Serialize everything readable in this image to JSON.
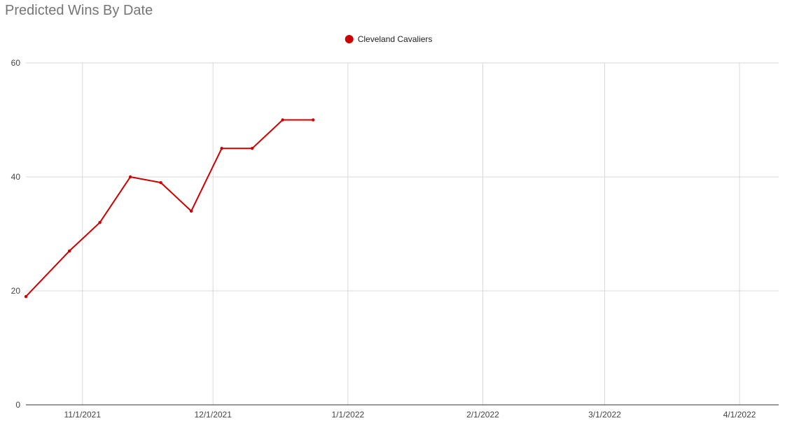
{
  "chart_data": {
    "type": "line",
    "title": "Predicted Wins By Date",
    "xlabel": "",
    "ylabel": "",
    "x_axis_type": "date",
    "xlim": [
      "2021-10-19",
      "2022-04-10"
    ],
    "ylim": [
      0,
      60
    ],
    "x_ticks": [
      {
        "date": "2021-11-01",
        "label": "11/1/2021"
      },
      {
        "date": "2021-12-01",
        "label": "12/1/2021"
      },
      {
        "date": "2022-01-01",
        "label": "1/1/2022"
      },
      {
        "date": "2022-02-01",
        "label": "2/1/2022"
      },
      {
        "date": "2022-03-01",
        "label": "3/1/2022"
      },
      {
        "date": "2022-04-01",
        "label": "4/1/2022"
      }
    ],
    "y_ticks": [
      0,
      20,
      40,
      60
    ],
    "grid": true,
    "legend": {
      "position": "top-center"
    },
    "series": [
      {
        "name": "Cleveland Cavaliers",
        "color": "#cc0000",
        "points": [
          {
            "x": "2021-10-19",
            "y": 19
          },
          {
            "x": "2021-10-29",
            "y": 27
          },
          {
            "x": "2021-11-05",
            "y": 32
          },
          {
            "x": "2021-11-12",
            "y": 40
          },
          {
            "x": "2021-11-19",
            "y": 39
          },
          {
            "x": "2021-11-26",
            "y": 34
          },
          {
            "x": "2021-12-03",
            "y": 45
          },
          {
            "x": "2021-12-10",
            "y": 45
          },
          {
            "x": "2021-12-17",
            "y": 50
          },
          {
            "x": "2021-12-24",
            "y": 50
          }
        ]
      }
    ]
  }
}
